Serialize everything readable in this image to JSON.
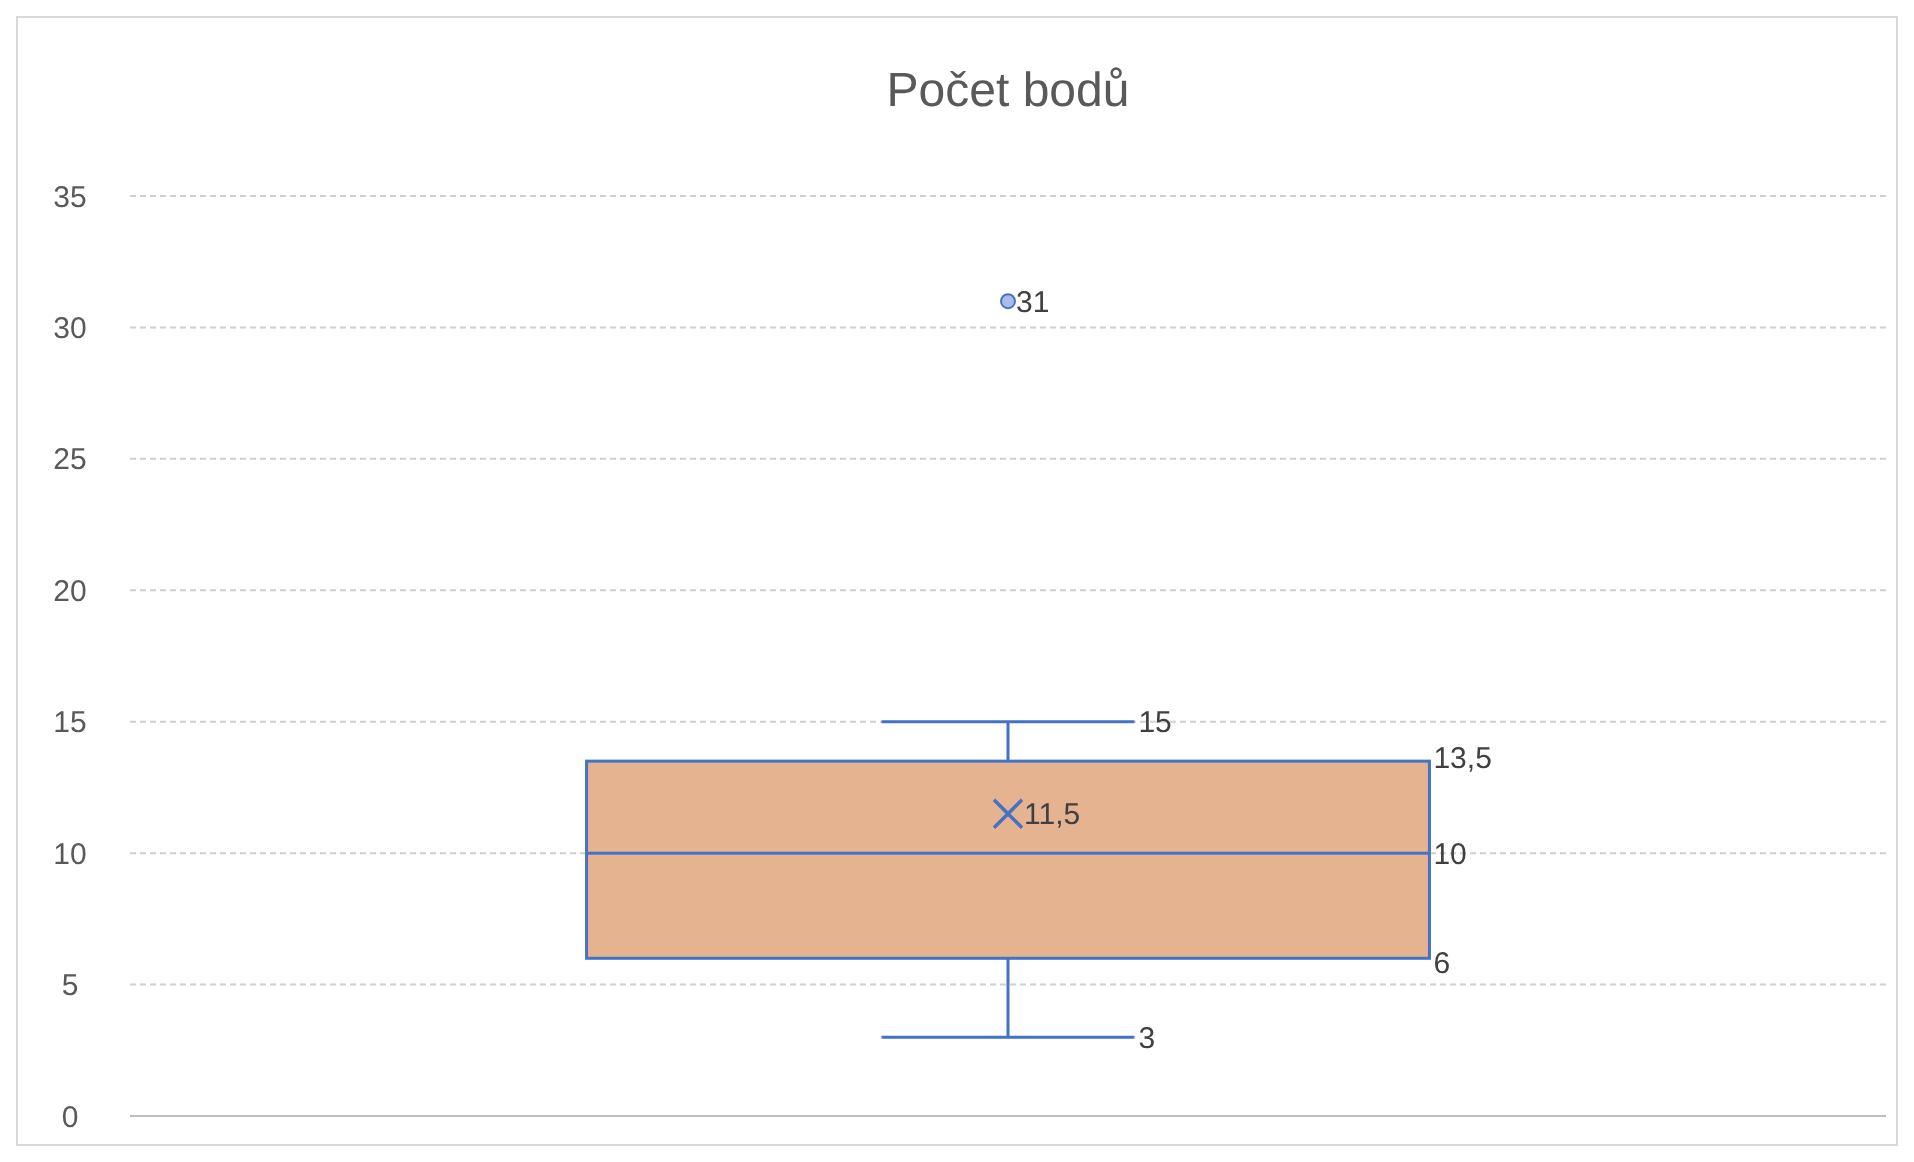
{
  "chart_data": {
    "type": "box",
    "title": "Počet bodů",
    "categories": [
      null
    ],
    "series": [
      {
        "color": "#4472c4",
        "boxes": [
          {
            "low": 3,
            "q1": 6,
            "median": 10,
            "q3": 13.5,
            "high": 15,
            "mean": 11.5,
            "outliers": [
              31
            ]
          }
        ]
      }
    ],
    "colors": [
      "#e6b391"
    ],
    "ylim": [
      0,
      35
    ],
    "yticks": [
      0,
      5,
      10,
      15,
      20,
      25,
      30,
      35
    ],
    "grid": "y",
    "annotations": [
      "31",
      "15",
      "13,5",
      "11,5",
      "10",
      "6",
      "3"
    ]
  }
}
